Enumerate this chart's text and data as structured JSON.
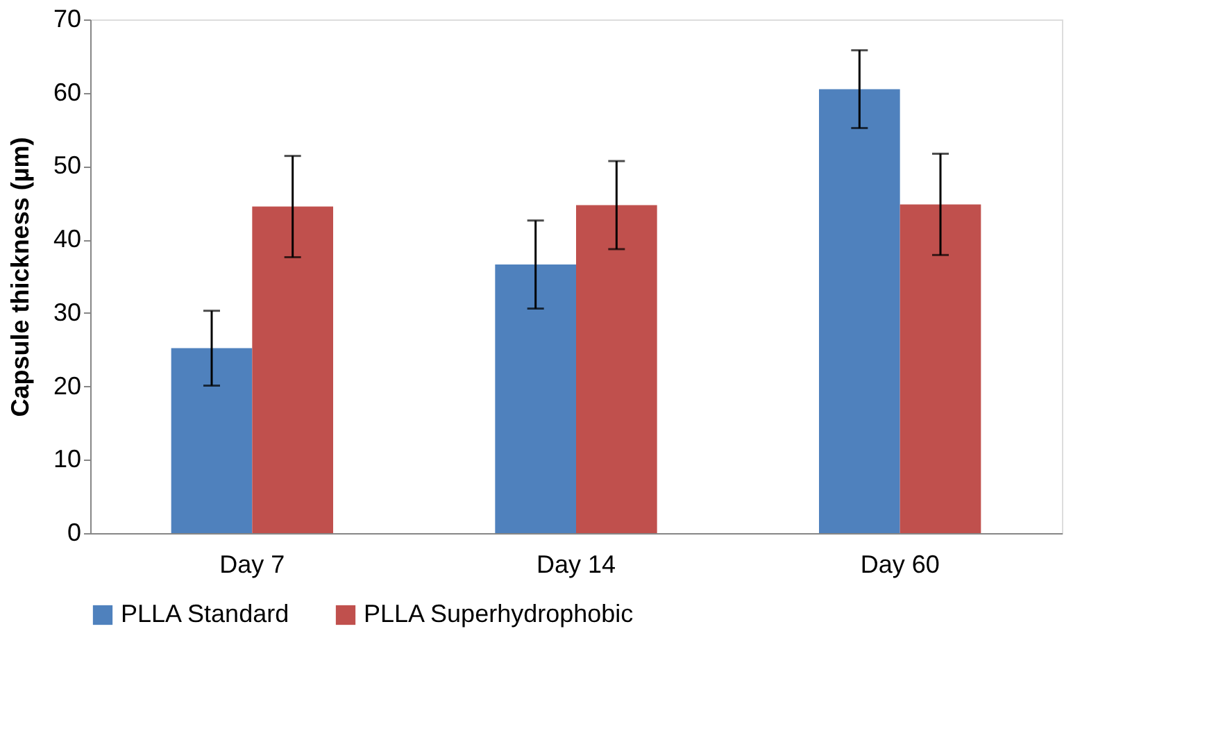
{
  "chart_data": {
    "type": "bar",
    "ylabel": "Capsule thickness (µm)",
    "categories": [
      "Day 7",
      "Day 14",
      "Day 60"
    ],
    "series": [
      {
        "name": "PLLA Standard",
        "color": "#4f81bd",
        "values": [
          25.2,
          36.6,
          60.5
        ],
        "errors": [
          5.1,
          6.0,
          5.3
        ]
      },
      {
        "name": "PLLA Superhydrophobic",
        "color": "#c0504d",
        "values": [
          44.5,
          44.7,
          44.8
        ],
        "errors": [
          6.9,
          6.0,
          6.9
        ]
      }
    ],
    "ylim": [
      0,
      70
    ],
    "yticks": [
      0,
      10,
      20,
      30,
      40,
      50,
      60,
      70
    ],
    "grid": false,
    "legend": "bottom"
  }
}
